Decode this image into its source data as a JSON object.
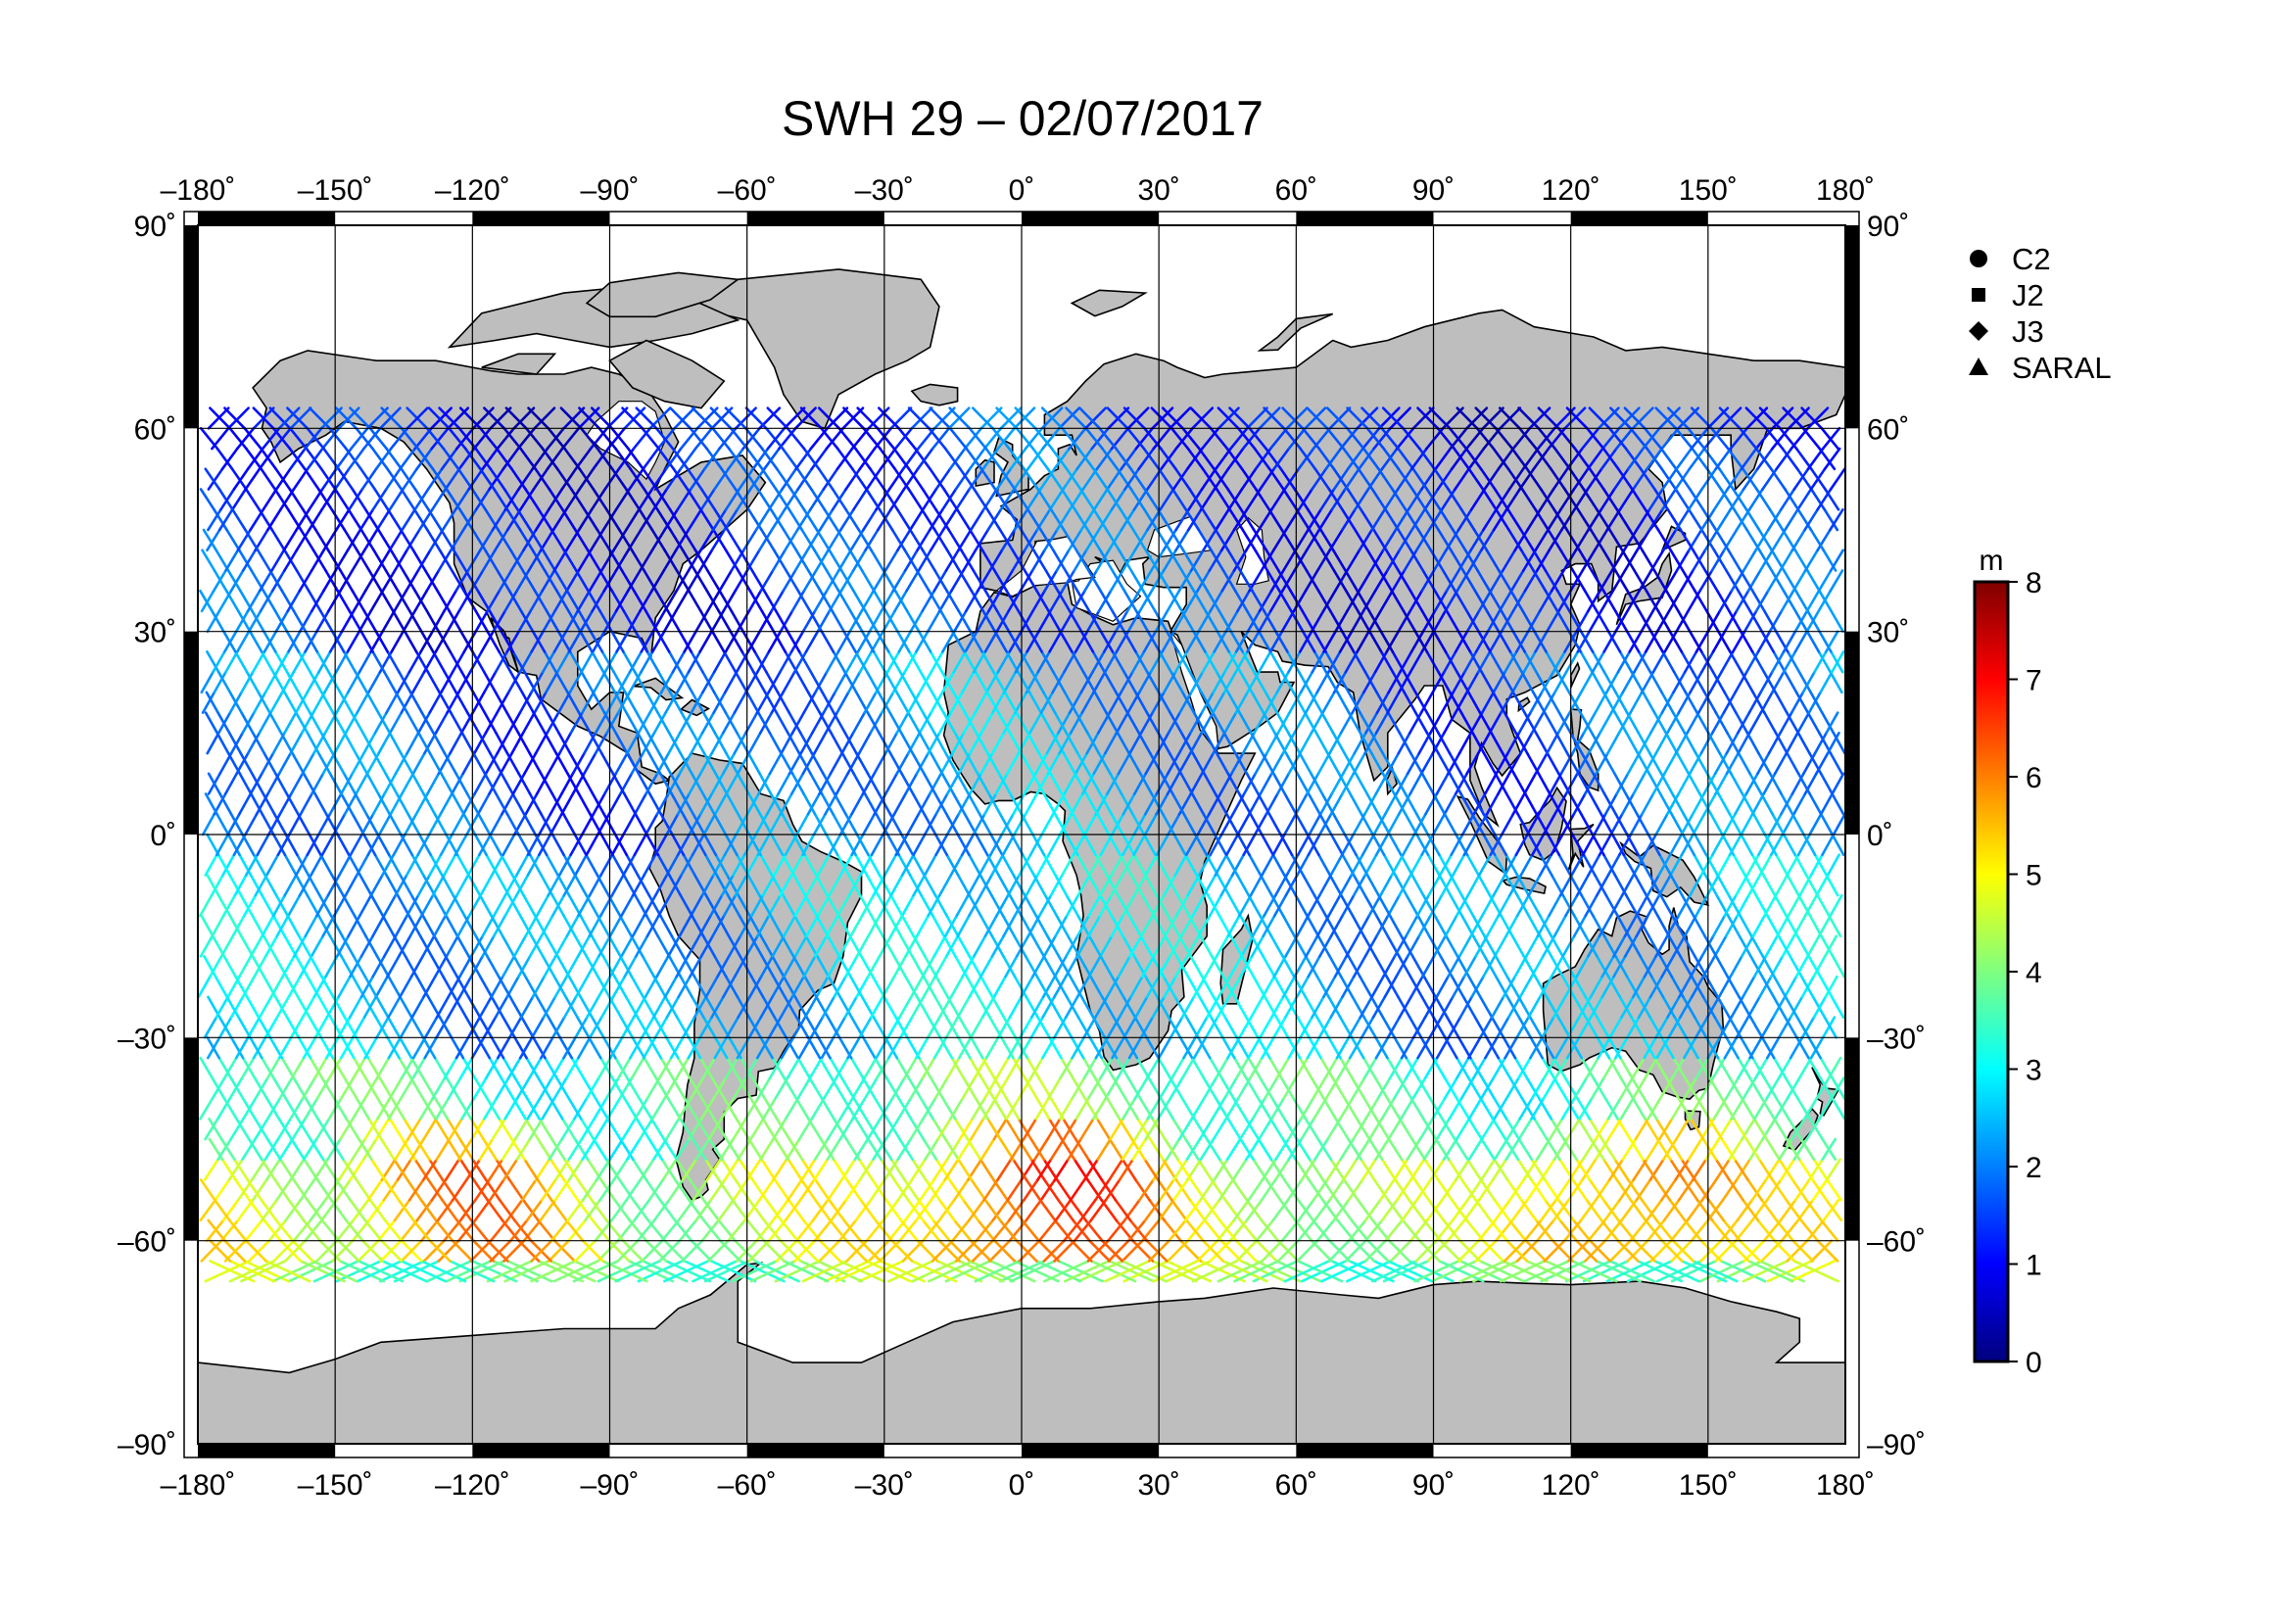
{
  "title": "SWH 29 – 02/07/2017",
  "map": {
    "lon_range": [
      -180,
      180
    ],
    "lat_range": [
      -90,
      90
    ],
    "lon_ticks": [
      {
        "value": -180,
        "label": "–180˚"
      },
      {
        "value": -150,
        "label": "–150˚"
      },
      {
        "value": -120,
        "label": "–120˚"
      },
      {
        "value": -90,
        "label": "–90˚"
      },
      {
        "value": -60,
        "label": "–60˚"
      },
      {
        "value": -30,
        "label": "–30˚"
      },
      {
        "value": 0,
        "label": "0˚"
      },
      {
        "value": 30,
        "label": "30˚"
      },
      {
        "value": 60,
        "label": "60˚"
      },
      {
        "value": 90,
        "label": "90˚"
      },
      {
        "value": 120,
        "label": "120˚"
      },
      {
        "value": 150,
        "label": "150˚"
      },
      {
        "value": 180,
        "label": "180˚"
      }
    ],
    "lat_ticks": [
      {
        "value": 90,
        "label": "90˚"
      },
      {
        "value": 60,
        "label": "60˚"
      },
      {
        "value": 30,
        "label": "30˚"
      },
      {
        "value": 0,
        "label": "0˚"
      },
      {
        "value": -30,
        "label": "–30˚"
      },
      {
        "value": -60,
        "label": "–60˚"
      },
      {
        "value": -90,
        "label": "–90˚"
      }
    ],
    "grid": true,
    "land_color": "#bebebe",
    "ocean_color": "#ffffff"
  },
  "legend": {
    "placement": "right",
    "items": [
      {
        "label": "C2",
        "symbol": "circle"
      },
      {
        "label": "J2",
        "symbol": "square"
      },
      {
        "label": "J3",
        "symbol": "diamond"
      },
      {
        "label": "SARAL",
        "symbol": "triangle"
      }
    ]
  },
  "colorbar": {
    "unit": "m",
    "min": 0,
    "max": 8,
    "ticks": [
      {
        "value": 8,
        "label": "8"
      },
      {
        "value": 7,
        "label": "7"
      },
      {
        "value": 6,
        "label": "6"
      },
      {
        "value": 5,
        "label": "5"
      },
      {
        "value": 4,
        "label": "4"
      },
      {
        "value": 3,
        "label": "3"
      },
      {
        "value": 2,
        "label": "2"
      },
      {
        "value": 1,
        "label": "1"
      },
      {
        "value": 0,
        "label": "0"
      }
    ],
    "colormap": [
      "#00007f",
      "#0000ff",
      "#007fff",
      "#00ffff",
      "#7fff7f",
      "#ffff00",
      "#ff7f00",
      "#ff0000",
      "#7f0000"
    ]
  },
  "chart_data": {
    "type": "scatter",
    "title": "SWH 29 – 02/07/2017",
    "xlim": [
      -180,
      180
    ],
    "ylim": [
      -90,
      90
    ],
    "series": [
      {
        "name": "C2"
      },
      {
        "name": "J2"
      },
      {
        "name": "J3"
      },
      {
        "name": "SARAL"
      }
    ],
    "swh_by_latitude_band": [
      {
        "lat_from": 60,
        "lat_to": 70,
        "swh_m": 1.3
      },
      {
        "lat_from": 30,
        "lat_to": 60,
        "swh_m": 1.4
      },
      {
        "lat_from": 0,
        "lat_to": 30,
        "swh_m": 2.0
      },
      {
        "lat_from": -30,
        "lat_to": 0,
        "swh_m": 2.5
      },
      {
        "lat_from": -45,
        "lat_to": -30,
        "swh_m": 3.7
      },
      {
        "lat_from": -60,
        "lat_to": -45,
        "swh_m": 4.6
      },
      {
        "lat_from": -66,
        "lat_to": -60,
        "swh_m": 4.0
      }
    ],
    "max_swh_m": 8
  }
}
